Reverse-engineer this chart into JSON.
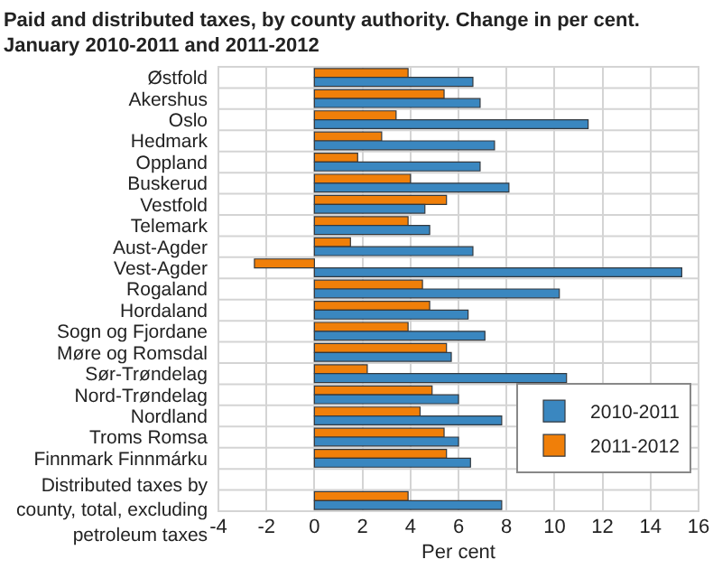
{
  "chart_data": {
    "type": "bar",
    "orientation": "horizontal",
    "title": "Paid and distributed taxes, by county authority. Change in per cent. January 2010-2011 and 2011-2012",
    "xlabel": "Per cent",
    "categories": [
      "Østfold",
      "Akershus",
      "Oslo",
      "Hedmark",
      "Oppland",
      "Buskerud",
      "Vestfold",
      "Telemark",
      "Aust-Agder",
      "Vest-Agder",
      "Rogaland",
      "Hordaland",
      "Sogn og Fjordane",
      "Møre og Romsdal",
      "Sør-Trøndelag",
      "Nord-Trøndelag",
      "Nordland",
      "Troms Romsa",
      "Finnmark Finnmárku",
      null,
      "Distributed taxes by county, total, excluding petroleum taxes"
    ],
    "series": [
      {
        "name": "2010-2011",
        "color": "#3a87c0",
        "values": [
          6.6,
          6.9,
          11.4,
          7.5,
          6.9,
          8.1,
          4.6,
          4.8,
          6.6,
          15.3,
          10.2,
          6.4,
          7.1,
          5.7,
          10.5,
          6.0,
          7.8,
          6.0,
          6.5,
          null,
          7.8
        ]
      },
      {
        "name": "2011-2012",
        "color": "#f07f09",
        "values": [
          3.9,
          5.4,
          3.4,
          2.8,
          1.8,
          4.0,
          5.5,
          3.9,
          1.5,
          -2.5,
          4.5,
          4.8,
          3.9,
          5.5,
          2.2,
          4.9,
          4.4,
          5.4,
          5.5,
          null,
          3.9
        ]
      }
    ],
    "xlim": [
      -4,
      16
    ],
    "xticks": [
      -4,
      -2,
      0,
      2,
      4,
      6,
      8,
      10,
      12,
      14,
      16
    ],
    "grid": true,
    "legend": "bottom right"
  }
}
